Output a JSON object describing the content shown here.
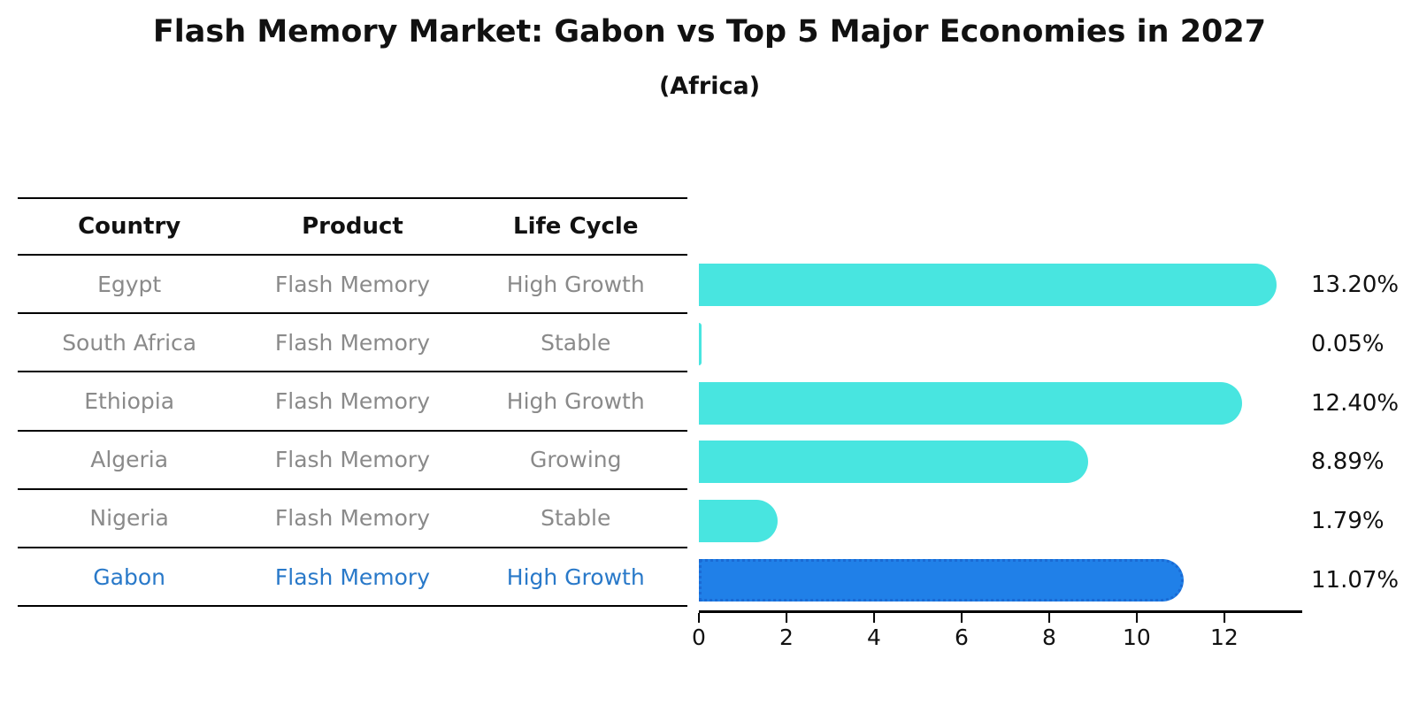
{
  "title": "Flash Memory Market: Gabon vs Top 5 Major Economies in 2027",
  "subtitle": "(Africa)",
  "table": {
    "headers": {
      "country": "Country",
      "product": "Product",
      "life_cycle": "Life Cycle"
    },
    "rows": [
      {
        "country": "Egypt",
        "product": "Flash Memory",
        "life_cycle": "High Growth",
        "highlight": false
      },
      {
        "country": "South Africa",
        "product": "Flash Memory",
        "life_cycle": "Stable",
        "highlight": false
      },
      {
        "country": "Ethiopia",
        "product": "Flash Memory",
        "life_cycle": "High Growth",
        "highlight": false
      },
      {
        "country": "Algeria",
        "product": "Flash Memory",
        "life_cycle": "Growing",
        "highlight": false
      },
      {
        "country": "Nigeria",
        "product": "Flash Memory",
        "life_cycle": "Stable",
        "highlight": false
      },
      {
        "country": "Gabon",
        "product": "Flash Memory",
        "life_cycle": "High Growth",
        "highlight": true
      }
    ]
  },
  "chart_data": {
    "type": "bar",
    "orientation": "horizontal",
    "categories": [
      "Egypt",
      "South Africa",
      "Ethiopia",
      "Algeria",
      "Nigeria",
      "Gabon"
    ],
    "values": [
      13.2,
      0.05,
      12.4,
      8.89,
      1.79,
      11.07
    ],
    "labels": [
      "13.20%",
      "0.05%",
      "12.40%",
      "8.89%",
      "1.79%",
      "11.07%"
    ],
    "xticks": [
      0,
      2,
      4,
      6,
      8,
      10,
      12
    ],
    "xlim": [
      0,
      13.74
    ],
    "grid": false,
    "legend": "none",
    "highlight_index": 5,
    "bar_colors": [
      "#48E5E0",
      "#48E5E0",
      "#48E5E0",
      "#48E5E0",
      "#48E5E0",
      "#2080E8"
    ],
    "colors": {
      "default_bar": "#48E5E0",
      "highlight_bar": "#2080E8",
      "highlight_bar_border": "#1A6AD4",
      "highlight_text": "#2979C9",
      "row_text": "#8A8A8A",
      "axis": "#000000"
    }
  }
}
